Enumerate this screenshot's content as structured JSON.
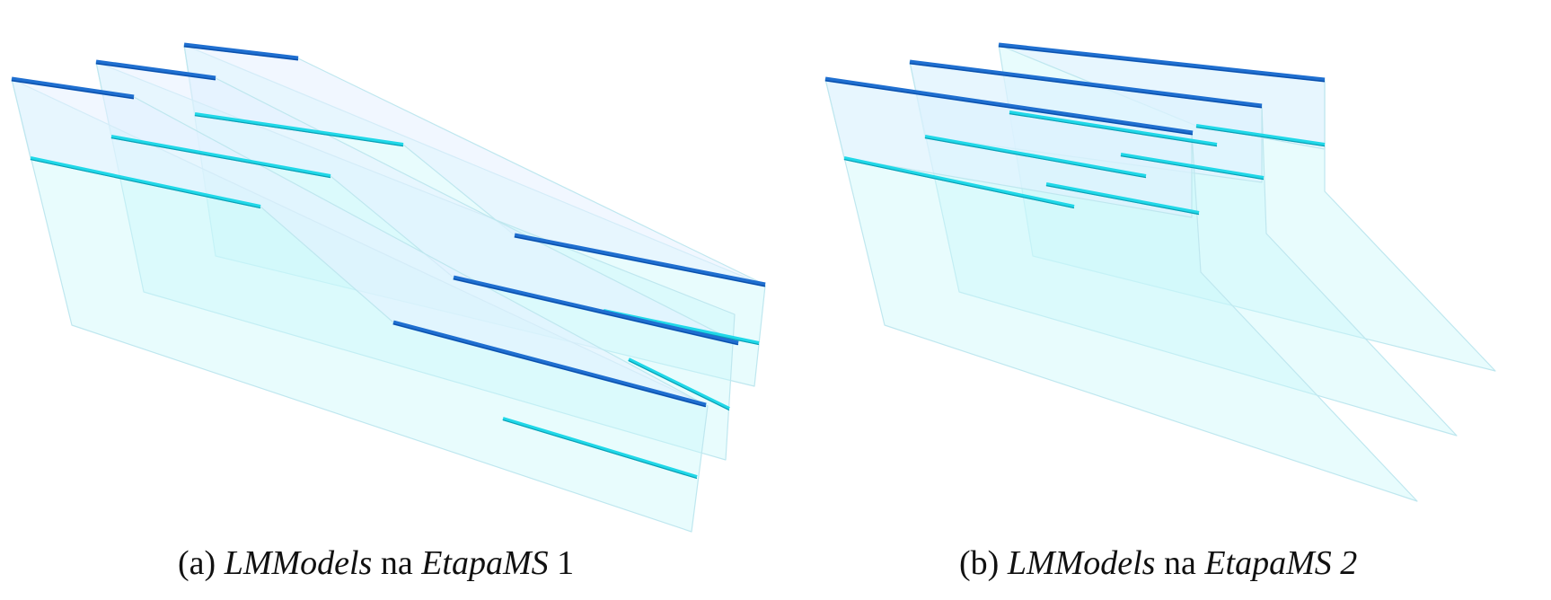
{
  "colors": {
    "plane_fill": "#c9f7fb",
    "plane_edge": "#bfe7ef",
    "upper_band": "#e6f0ff",
    "dark_line": "#1f6fd0",
    "dark_line_core": "#0b4ea8",
    "cyan_line": "#20d8e8",
    "cyan_line_core": "#0a9fb5",
    "caption_text": "#111111"
  },
  "captions": [
    {
      "prefix": "(a) ",
      "model": "LMModels",
      "middle": " na ",
      "stage": "EtapaMS",
      "suffix": " 1"
    },
    {
      "prefix": "(b) ",
      "model": "LMModels",
      "middle": " na ",
      "stage": "EtapaMS 2",
      "suffix": ""
    }
  ]
}
